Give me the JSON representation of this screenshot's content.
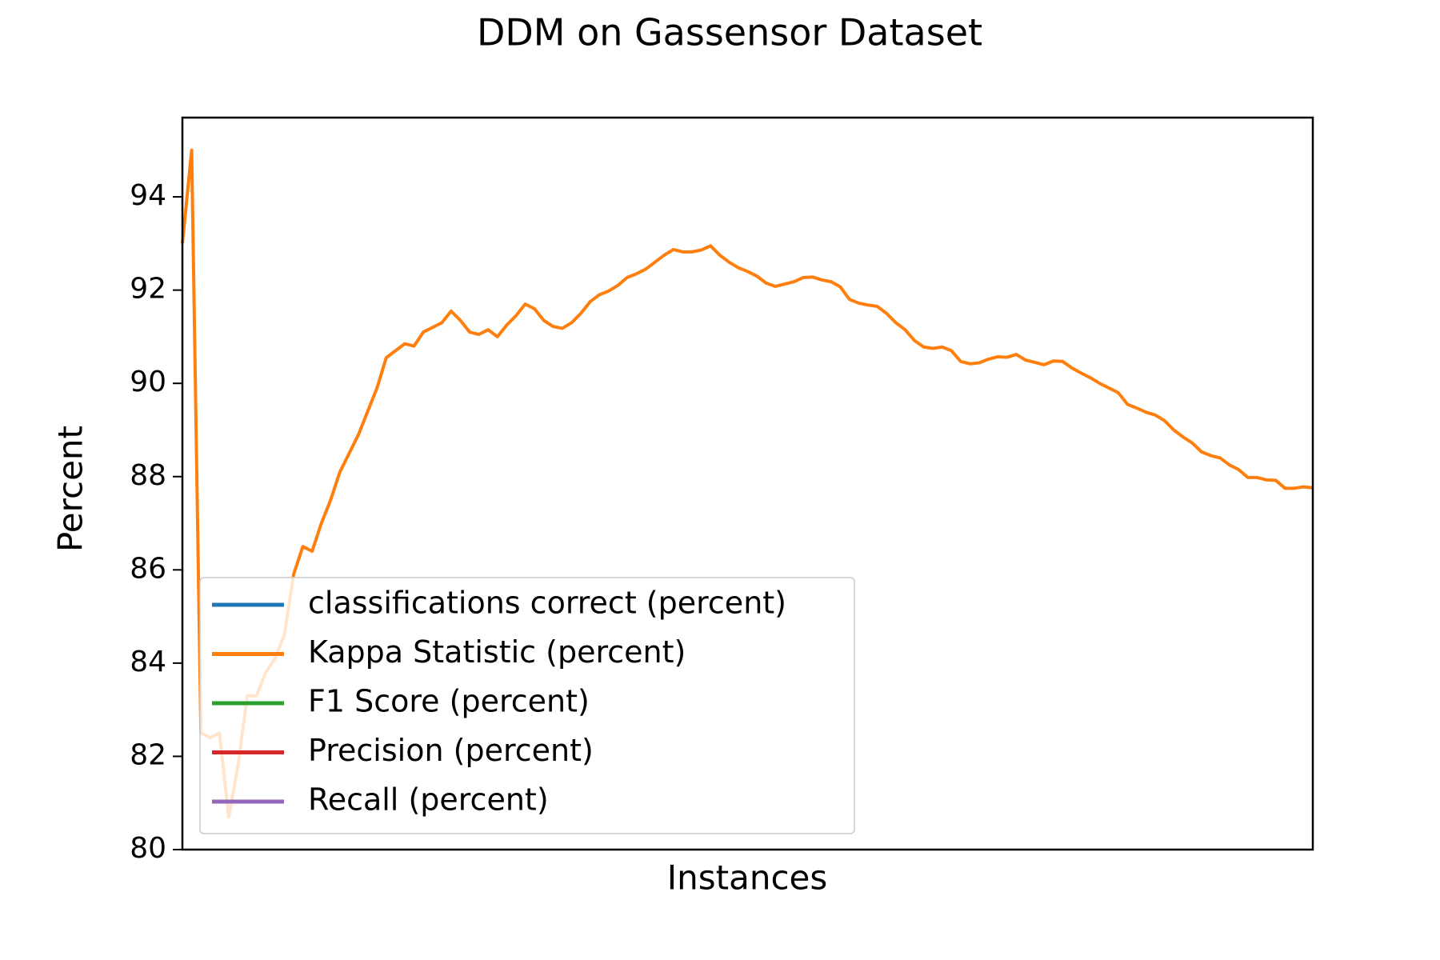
{
  "chart_data": {
    "type": "line",
    "title": "DDM on Gassensor Dataset",
    "xlabel": "Instances",
    "ylabel": "Percent",
    "ylim": [
      80,
      95.7
    ],
    "yticks": [
      80,
      82,
      84,
      86,
      88,
      90,
      92,
      94
    ],
    "legend": "lower left",
    "series": [
      {
        "name": "classifications correct (percent)",
        "color": "#1f77b4"
      },
      {
        "name": "Kappa Statistic (percent)",
        "color": "#ff7f0e",
        "values": [
          93.0,
          95.0,
          82.5,
          82.4,
          82.5,
          80.7,
          81.8,
          83.3,
          83.3,
          83.8,
          84.1,
          84.6,
          85.9,
          86.5,
          86.4,
          87.0,
          87.5,
          88.1,
          88.5,
          88.9,
          89.4,
          89.9,
          90.55,
          90.7,
          90.85,
          90.8,
          91.1,
          91.2,
          91.3,
          91.55,
          91.35,
          91.1,
          91.05,
          91.15,
          91.0,
          91.25,
          91.45,
          91.7,
          91.6,
          91.35,
          91.22,
          91.18,
          91.3,
          91.5,
          91.75,
          91.9,
          91.98,
          92.1,
          92.27,
          92.35,
          92.45,
          92.6,
          92.75,
          92.87,
          92.82,
          92.82,
          92.86,
          92.95,
          92.75,
          92.6,
          92.48,
          92.4,
          92.3,
          92.15,
          92.08,
          92.13,
          92.18,
          92.27,
          92.28,
          92.22,
          92.18,
          92.07,
          91.8,
          91.72,
          91.68,
          91.65,
          91.5,
          91.3,
          91.15,
          90.92,
          90.78,
          90.75,
          90.78,
          90.7,
          90.47,
          90.42,
          90.44,
          90.52,
          90.57,
          90.56,
          90.62,
          90.5,
          90.45,
          90.4,
          90.48,
          90.47,
          90.33,
          90.22,
          90.12,
          90.0,
          89.9,
          89.8,
          89.55,
          89.47,
          89.38,
          89.32,
          89.2,
          89.0,
          88.85,
          88.72,
          88.53,
          88.45,
          88.4,
          88.25,
          88.15,
          87.98,
          87.98,
          87.93,
          87.92,
          87.75,
          87.75,
          87.78,
          87.76
        ]
      },
      {
        "name": "F1 Score (percent)",
        "color": "#2ca02c"
      },
      {
        "name": "Precision (percent)",
        "color": "#d62728"
      },
      {
        "name": "Recall (percent)",
        "color": "#9467bd"
      }
    ]
  }
}
